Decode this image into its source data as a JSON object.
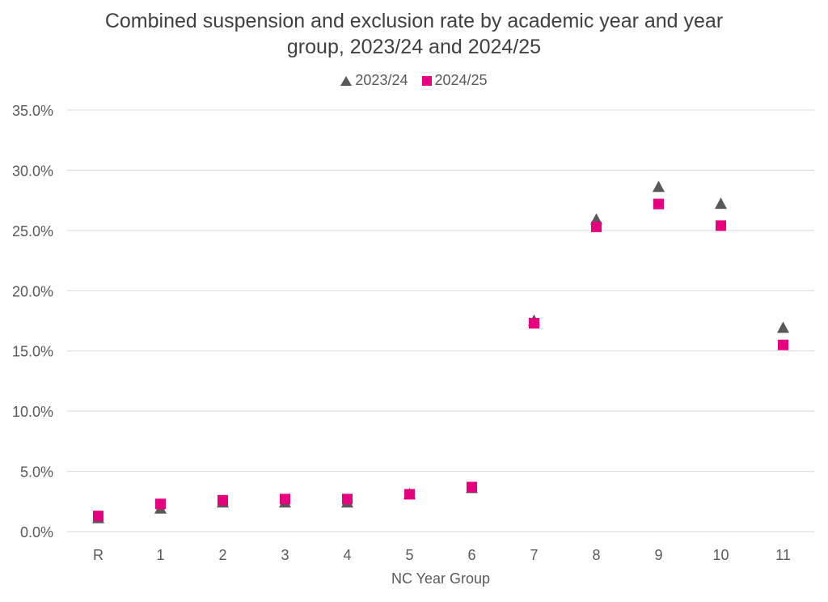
{
  "chart_data": {
    "type": "scatter",
    "title_lines": [
      "Combined suspension and exclusion rate by academic year and year",
      "group, 2023/24 and 2024/25"
    ],
    "xlabel": "NC Year Group",
    "ylabel": "",
    "categories": [
      "R",
      "1",
      "2",
      "3",
      "4",
      "5",
      "6",
      "7",
      "8",
      "9",
      "10",
      "11"
    ],
    "ylim": [
      0,
      35
    ],
    "yticks": [
      "0.0%",
      "5.0%",
      "10.0%",
      "15.0%",
      "20.0%",
      "25.0%",
      "30.0%",
      "35.0%"
    ],
    "ytick_values": [
      0,
      5,
      10,
      15,
      20,
      25,
      30,
      35
    ],
    "grid": "horizontal",
    "legend_position": "top-center",
    "series": [
      {
        "name": "2023/24",
        "marker": "triangle",
        "color": "#595959",
        "values": [
          1.1,
          1.9,
          2.4,
          2.4,
          2.4,
          3.1,
          3.6,
          17.5,
          25.9,
          28.6,
          27.2,
          16.9
        ]
      },
      {
        "name": "2024/25",
        "marker": "square",
        "color": "#e6007e",
        "values": [
          1.3,
          2.3,
          2.6,
          2.7,
          2.7,
          3.1,
          3.7,
          17.3,
          25.3,
          27.2,
          25.4,
          15.5
        ]
      }
    ]
  }
}
